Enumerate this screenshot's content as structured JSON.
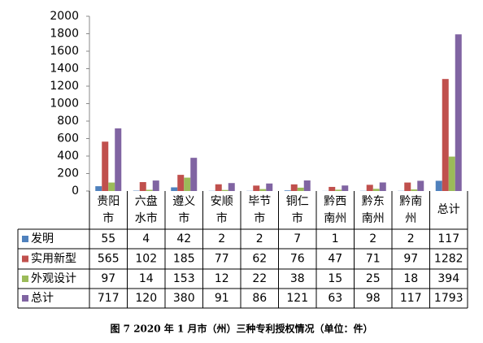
{
  "chart_data": {
    "type": "bar",
    "caption": "图 7 2020 年 1 月市（州）三种专利授权情况（单位：件）",
    "categories": [
      "贵阳市",
      "六盘水市",
      "遵义市",
      "安顺市",
      "毕节市",
      "铜仁市",
      "黔西南州",
      "黔东南州",
      "黔南州",
      "总计"
    ],
    "series": [
      {
        "name": "发明",
        "color": "#4f81bd",
        "values": [
          55,
          4,
          42,
          2,
          2,
          7,
          1,
          2,
          2,
          117
        ]
      },
      {
        "name": "实用新型",
        "color": "#c0504d",
        "values": [
          565,
          102,
          185,
          77,
          62,
          76,
          47,
          71,
          97,
          1282
        ]
      },
      {
        "name": "外观设计",
        "color": "#9bbb59",
        "values": [
          97,
          14,
          153,
          12,
          22,
          38,
          15,
          25,
          18,
          394
        ]
      },
      {
        "name": "总计",
        "color": "#8064a2",
        "values": [
          717,
          120,
          380,
          91,
          86,
          121,
          63,
          98,
          117,
          1793
        ]
      }
    ],
    "ylim": [
      0,
      2000
    ],
    "yticks": [
      0,
      200,
      400,
      600,
      800,
      1000,
      1200,
      1400,
      1600,
      1800,
      2000
    ],
    "grid": false
  }
}
